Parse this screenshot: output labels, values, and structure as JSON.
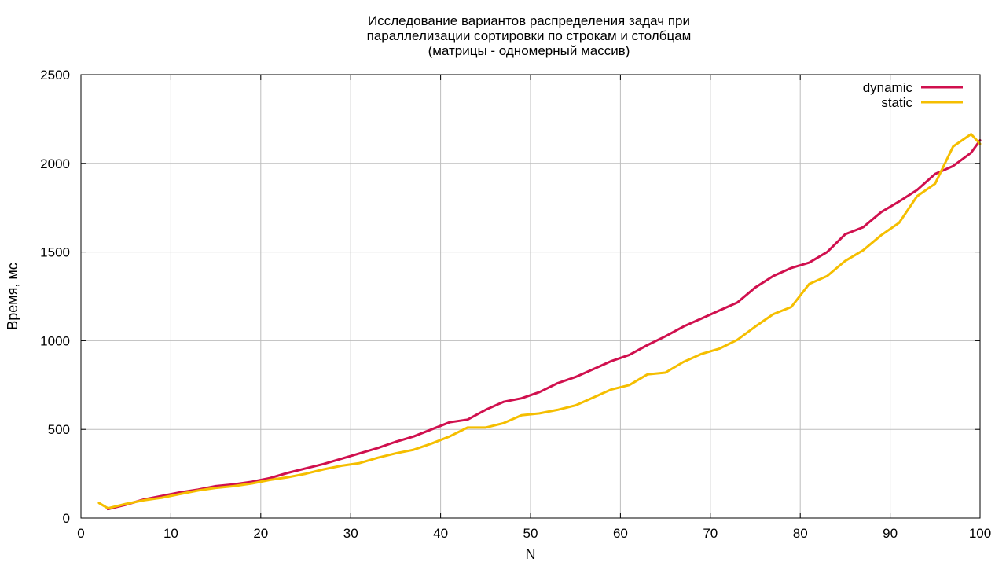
{
  "chart_data": {
    "type": "line",
    "title_lines": [
      "Исследование вариантов распределения задач при",
      "параллелизации сортировки по строкам и столбцам",
      "(матрицы - одномерный массив)"
    ],
    "xlabel": "N",
    "ylabel": "Время, мс",
    "xlim": [
      0,
      100
    ],
    "ylim": [
      0,
      2500
    ],
    "xticks": [
      0,
      10,
      20,
      30,
      40,
      50,
      60,
      70,
      80,
      90,
      100
    ],
    "yticks": [
      0,
      500,
      1000,
      1500,
      2000,
      2500
    ],
    "grid": true,
    "legend_position": "top-right",
    "series": [
      {
        "name": "dynamic",
        "color": "#d0104e",
        "x": [
          3,
          5,
          7,
          9,
          11,
          13,
          15,
          17,
          19,
          21,
          23,
          25,
          27,
          29,
          31,
          33,
          35,
          37,
          39,
          41,
          43,
          45,
          47,
          49,
          51,
          53,
          55,
          57,
          59,
          61,
          63,
          65,
          67,
          69,
          71,
          73,
          75,
          77,
          79,
          81,
          83,
          85,
          87,
          89,
          91,
          93,
          95,
          97,
          99,
          100
        ],
        "y": [
          50,
          75,
          105,
          125,
          145,
          160,
          180,
          190,
          205,
          225,
          255,
          280,
          305,
          335,
          365,
          395,
          430,
          460,
          500,
          540,
          555,
          610,
          655,
          675,
          710,
          760,
          795,
          840,
          885,
          920,
          975,
          1025,
          1080,
          1125,
          1170,
          1215,
          1300,
          1365,
          1410,
          1440,
          1500,
          1600,
          1640,
          1725,
          1785,
          1850,
          1940,
          1985,
          2060,
          2130
        ]
      },
      {
        "name": "static",
        "color": "#f5be00",
        "x": [
          2,
          3,
          5,
          7,
          9,
          11,
          13,
          15,
          17,
          19,
          21,
          23,
          25,
          27,
          29,
          31,
          33,
          35,
          37,
          39,
          41,
          43,
          45,
          47,
          49,
          51,
          53,
          55,
          57,
          59,
          61,
          63,
          65,
          67,
          69,
          71,
          73,
          75,
          77,
          79,
          81,
          83,
          85,
          87,
          89,
          91,
          93,
          95,
          97,
          99,
          100
        ],
        "y": [
          85,
          55,
          80,
          100,
          115,
          135,
          155,
          170,
          180,
          195,
          215,
          230,
          250,
          275,
          295,
          310,
          340,
          365,
          385,
          420,
          460,
          510,
          510,
          535,
          580,
          590,
          610,
          635,
          680,
          725,
          750,
          810,
          820,
          880,
          925,
          955,
          1005,
          1080,
          1150,
          1190,
          1320,
          1365,
          1450,
          1510,
          1595,
          1665,
          1815,
          1885,
          2095,
          2165,
          2110
        ]
      }
    ]
  }
}
